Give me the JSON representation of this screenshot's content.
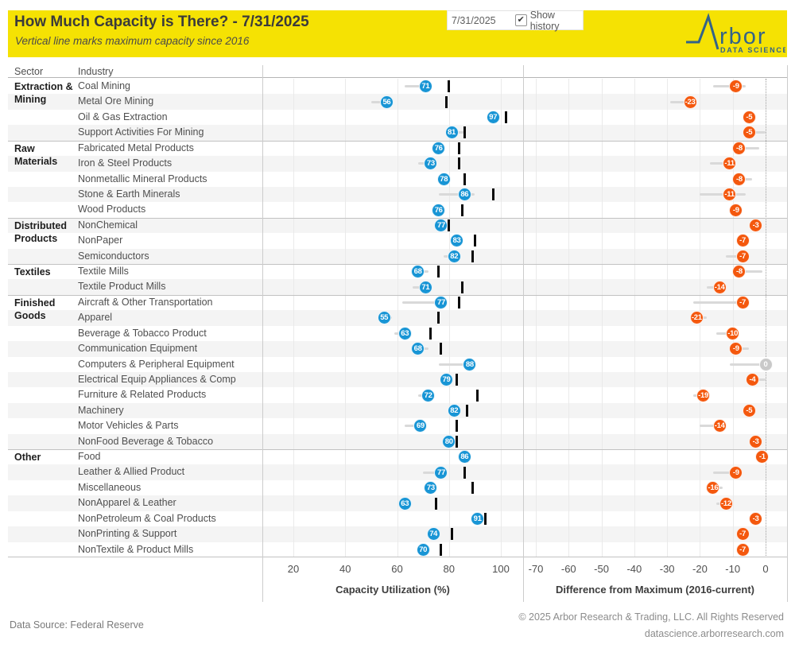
{
  "header": {
    "title": "How Much Capacity is There? - 7/31/2025",
    "subtitle": "Vertical line marks maximum capacity since 2016",
    "controls": {
      "date_value": "7/31/2025",
      "show_history_label": "Show history",
      "show_history_checked": true
    },
    "logo": {
      "brand": "Arbor",
      "wordmark_rest": "rbor",
      "tagline": "DATA SCIENCE"
    }
  },
  "table": {
    "sector_header": "Sector",
    "industry_header": "Industry"
  },
  "colors": {
    "banner_yellow": "#F5E203",
    "utilization_blue": "#1895D5",
    "difference_orange": "#F4580E",
    "zero_gray": "#C9C9C9",
    "logo_navy": "#336389"
  },
  "chart_data": {
    "type": "scatter",
    "variant": "horizontal dot plot with max-capacity tick marks and history whiskers",
    "panels": [
      {
        "id": "utilization",
        "title": "Capacity Utilization (%)",
        "ticks": [
          20,
          40,
          60,
          80,
          100
        ],
        "range": [
          12,
          102
        ]
      },
      {
        "id": "difference",
        "title": "Difference from Maximum (2016-current)",
        "ticks": [
          -70,
          -60,
          -50,
          -40,
          -30,
          -20,
          -10,
          0
        ],
        "range": [
          -74,
          4
        ],
        "zero_line": true
      }
    ],
    "groups": [
      {
        "label": "Extraction & Mining",
        "start": 0,
        "count": 4
      },
      {
        "label": "Raw Materials",
        "start": 4,
        "count": 5
      },
      {
        "label": "Distributed Products",
        "start": 9,
        "count": 3
      },
      {
        "label": "Textiles",
        "start": 12,
        "count": 2
      },
      {
        "label": "Finished Goods",
        "start": 14,
        "count": 10
      },
      {
        "label": "Other",
        "start": 24,
        "count": 7
      }
    ],
    "rows": [
      {
        "sector": "Extraction & Mining",
        "industry": "Coal Mining",
        "util": 71,
        "max": 80,
        "diff": -9,
        "util_hist": [
          63,
          71
        ],
        "diff_hist": [
          -16,
          -6
        ]
      },
      {
        "sector": "Extraction & Mining",
        "industry": "Metal Ore Mining",
        "util": 56,
        "max": 79,
        "diff": -23,
        "util_hist": [
          50,
          57
        ],
        "diff_hist": [
          -29,
          -22
        ]
      },
      {
        "sector": "Extraction & Mining",
        "industry": "Oil & Gas Extraction",
        "util": 97,
        "max": 102,
        "diff": -5,
        "util_hist": [
          95,
          97
        ],
        "diff_hist": [
          -5,
          -4
        ]
      },
      {
        "sector": "Extraction & Mining",
        "industry": "Support Activities For Mining",
        "util": 81,
        "max": 86,
        "diff": -5,
        "util_hist": [
          80,
          86
        ],
        "diff_hist": [
          -5,
          0
        ]
      },
      {
        "sector": "Raw Materials",
        "industry": "Fabricated Metal Products",
        "util": 76,
        "max": 84,
        "diff": -8,
        "util_hist": [
          75,
          77
        ],
        "diff_hist": [
          -8,
          -2
        ]
      },
      {
        "sector": "Raw Materials",
        "industry": "Iron & Steel Products",
        "util": 73,
        "max": 84,
        "diff": -11,
        "util_hist": [
          68,
          74
        ],
        "diff_hist": [
          -17,
          -11
        ]
      },
      {
        "sector": "Raw Materials",
        "industry": "Nonmetallic Mineral Products",
        "util": 78,
        "max": 86,
        "diff": -8,
        "util_hist": [
          77,
          80
        ],
        "diff_hist": [
          -8,
          -4
        ]
      },
      {
        "sector": "Raw Materials",
        "industry": "Stone & Earth Minerals",
        "util": 86,
        "max": 97,
        "diff": -11,
        "util_hist": [
          76,
          90
        ],
        "diff_hist": [
          -20,
          -6
        ]
      },
      {
        "sector": "Raw Materials",
        "industry": "Wood Products",
        "util": 76,
        "max": 85,
        "diff": -9,
        "util_hist": [
          75,
          77
        ],
        "diff_hist": [
          -9,
          -7
        ]
      },
      {
        "sector": "Distributed Products",
        "industry": "NonChemical",
        "util": 77,
        "max": 80,
        "diff": -3,
        "util_hist": [
          75,
          78
        ],
        "diff_hist": [
          -4,
          -2
        ]
      },
      {
        "sector": "Distributed Products",
        "industry": "NonPaper",
        "util": 83,
        "max": 90,
        "diff": -7,
        "util_hist": [
          82,
          84
        ],
        "diff_hist": [
          -7,
          -6
        ]
      },
      {
        "sector": "Distributed Products",
        "industry": "Semiconductors",
        "util": 82,
        "max": 89,
        "diff": -7,
        "util_hist": [
          78,
          83
        ],
        "diff_hist": [
          -12,
          -7
        ]
      },
      {
        "sector": "Textiles",
        "industry": "Textile Mills",
        "util": 68,
        "max": 76,
        "diff": -8,
        "util_hist": [
          67,
          72
        ],
        "diff_hist": [
          -8,
          -1
        ]
      },
      {
        "sector": "Textiles",
        "industry": "Textile Product Mills",
        "util": 71,
        "max": 85,
        "diff": -14,
        "util_hist": [
          66,
          72
        ],
        "diff_hist": [
          -18,
          -13
        ]
      },
      {
        "sector": "Finished Goods",
        "industry": "Aircraft & Other Transportation",
        "util": 77,
        "max": 84,
        "diff": -7,
        "util_hist": [
          62,
          77
        ],
        "diff_hist": [
          -22,
          -7
        ]
      },
      {
        "sector": "Finished Goods",
        "industry": "Apparel",
        "util": 55,
        "max": 76,
        "diff": -21,
        "util_hist": [
          54,
          58
        ],
        "diff_hist": [
          -21,
          -18
        ]
      },
      {
        "sector": "Finished Goods",
        "industry": "Beverage & Tobacco Product",
        "util": 63,
        "max": 73,
        "diff": -10,
        "util_hist": [
          59,
          64
        ],
        "diff_hist": [
          -15,
          -8
        ]
      },
      {
        "sector": "Finished Goods",
        "industry": "Communication Equipment",
        "util": 68,
        "max": 77,
        "diff": -9,
        "util_hist": [
          67,
          72
        ],
        "diff_hist": [
          -9,
          -5
        ]
      },
      {
        "sector": "Finished Goods",
        "industry": "Computers & Peripheral Equipment",
        "util": 88,
        "max": 88,
        "diff": 0,
        "util_hist": [
          76,
          88
        ],
        "diff_hist": [
          -11,
          0
        ]
      },
      {
        "sector": "Finished Goods",
        "industry": "Electrical Equip Appliances & Comp",
        "util": 79,
        "max": 83,
        "diff": -4,
        "util_hist": [
          77,
          80
        ],
        "diff_hist": [
          -4,
          0
        ]
      },
      {
        "sector": "Finished Goods",
        "industry": "Furniture & Related Products",
        "util": 72,
        "max": 91,
        "diff": -19,
        "util_hist": [
          68,
          73
        ],
        "diff_hist": [
          -22,
          -18
        ]
      },
      {
        "sector": "Finished Goods",
        "industry": "Machinery",
        "util": 82,
        "max": 87,
        "diff": -5,
        "util_hist": [
          80,
          83
        ],
        "diff_hist": [
          -6,
          -4
        ]
      },
      {
        "sector": "Finished Goods",
        "industry": "Motor Vehicles & Parts",
        "util": 69,
        "max": 83,
        "diff": -14,
        "util_hist": [
          63,
          70
        ],
        "diff_hist": [
          -20,
          -12
        ]
      },
      {
        "sector": "Finished Goods",
        "industry": "NonFood Beverage & Tobacco",
        "util": 80,
        "max": 83,
        "diff": -3,
        "util_hist": [
          78,
          81
        ],
        "diff_hist": [
          -4,
          -2
        ]
      },
      {
        "sector": "Other",
        "industry": "Food",
        "util": 86,
        "max": 87,
        "diff": -1,
        "util_hist": [
          84,
          87
        ],
        "diff_hist": [
          -2,
          -1
        ]
      },
      {
        "sector": "Other",
        "industry": "Leather & Allied Product",
        "util": 77,
        "max": 86,
        "diff": -9,
        "util_hist": [
          70,
          78
        ],
        "diff_hist": [
          -16,
          -8
        ]
      },
      {
        "sector": "Other",
        "industry": "Miscellaneous",
        "util": 73,
        "max": 89,
        "diff": -16,
        "util_hist": [
          71,
          74
        ],
        "diff_hist": [
          -17,
          -13
        ]
      },
      {
        "sector": "Other",
        "industry": "NonApparel & Leather",
        "util": 63,
        "max": 75,
        "diff": -12,
        "util_hist": [
          61,
          64
        ],
        "diff_hist": [
          -15,
          -11
        ]
      },
      {
        "sector": "Other",
        "industry": "NonPetroleum & Coal Products",
        "util": 91,
        "max": 94,
        "diff": -3,
        "util_hist": [
          89,
          92
        ],
        "diff_hist": [
          -4,
          -2
        ]
      },
      {
        "sector": "Other",
        "industry": "NonPrinting & Support",
        "util": 74,
        "max": 81,
        "diff": -7,
        "util_hist": [
          72,
          75
        ],
        "diff_hist": [
          -8,
          -6
        ]
      },
      {
        "sector": "Other",
        "industry": "NonTextile & Product Mills",
        "util": 70,
        "max": 77,
        "diff": -7,
        "util_hist": [
          68,
          71
        ],
        "diff_hist": [
          -7,
          -6
        ]
      }
    ]
  },
  "footer": {
    "source": "Data Source: Federal Reserve",
    "copyright": "© 2025 Arbor Research & Trading, LLC. All Rights Reserved",
    "website": "datascience.arborresearch.com"
  }
}
